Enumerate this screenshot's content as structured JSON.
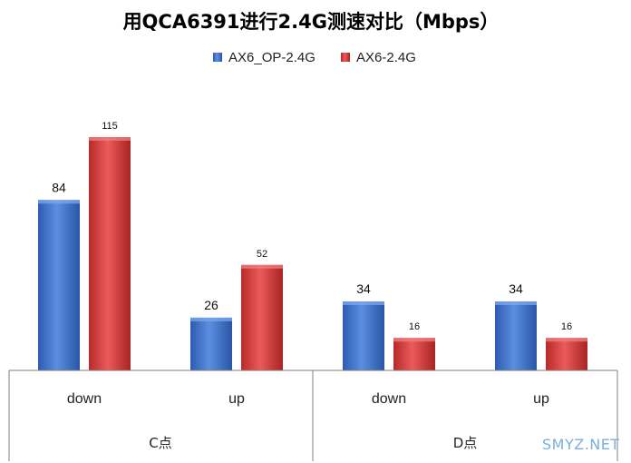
{
  "chart_data": {
    "type": "bar",
    "title": "用QCA6391进行2.4G测速对比（Mbps）",
    "groups": [
      {
        "name": "C点",
        "categories": [
          "down",
          "up"
        ]
      },
      {
        "name": "D点",
        "categories": [
          "down",
          "up"
        ]
      }
    ],
    "series": [
      {
        "name": "AX6_OP-2.4G",
        "color": "#3a6fc6",
        "values": [
          84,
          26,
          34,
          34
        ]
      },
      {
        "name": "AX6-2.4G",
        "color": "#d03535",
        "values": [
          115,
          52,
          16,
          16
        ]
      }
    ],
    "ylim": [
      0,
      115
    ],
    "legend_position": "top-center",
    "grid": false
  },
  "watermark": "SMYZ.NET"
}
